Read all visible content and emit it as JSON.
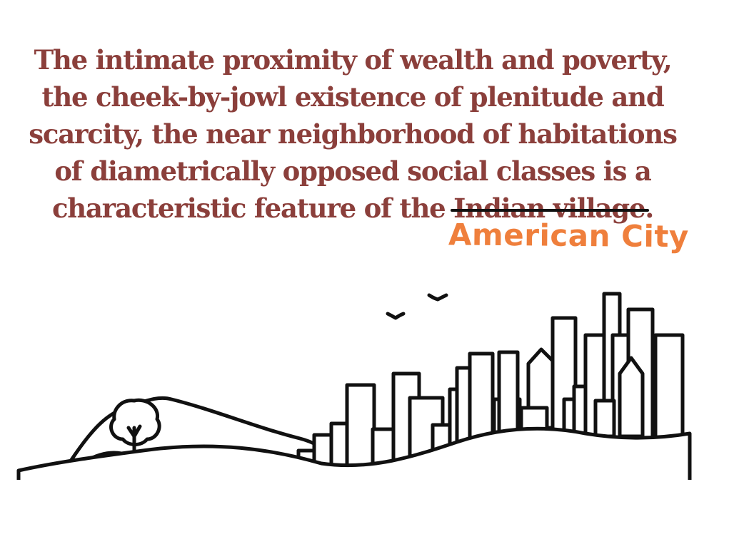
{
  "quote": {
    "before": "The intimate proximity of wealth and poverty, the cheek-by-jowl existence of plenitude and scarcity, the near neighborhood of habitations of diametrically opposed social classes is a characteristic feature of the ",
    "struck": "Indian village",
    "after": "."
  },
  "replacement": "American City",
  "colors": {
    "quote_text": "#8b3f3b",
    "replacement_text": "#ef7f3c",
    "line_art": "#111111"
  },
  "illustration": {
    "icons": [
      "hill-icon",
      "tree-icon",
      "bird-icon",
      "skyline-icon"
    ]
  }
}
